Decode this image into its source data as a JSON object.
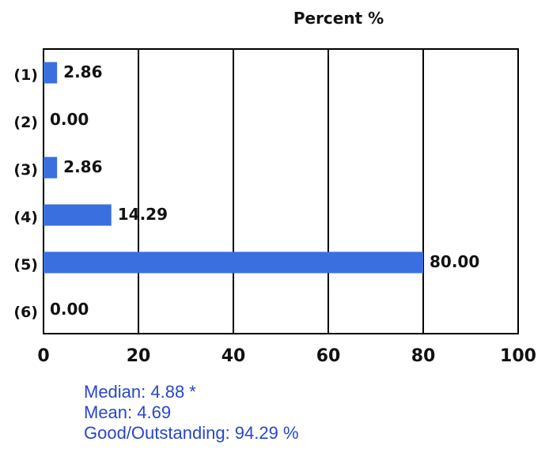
{
  "chart_data": {
    "type": "bar",
    "orientation": "horizontal",
    "title": "Percent %",
    "categories": [
      "(1)",
      "(2)",
      "(3)",
      "(4)",
      "(5)",
      "(6)"
    ],
    "values": [
      2.86,
      0.0,
      2.86,
      14.29,
      80.0,
      0.0
    ],
    "value_labels": [
      "2.86",
      "0.00",
      "2.86",
      "14.29",
      "80.00",
      "0.00"
    ],
    "xlim": [
      0,
      100
    ],
    "xticks": [
      0,
      20,
      40,
      60,
      80,
      100
    ],
    "grid": true,
    "bar_color": "#3a6fe0"
  },
  "stats": {
    "median": "Median: 4.88 *",
    "mean": "Mean: 4.69",
    "good_outstanding": "Good/Outstanding: 94.29 %"
  }
}
